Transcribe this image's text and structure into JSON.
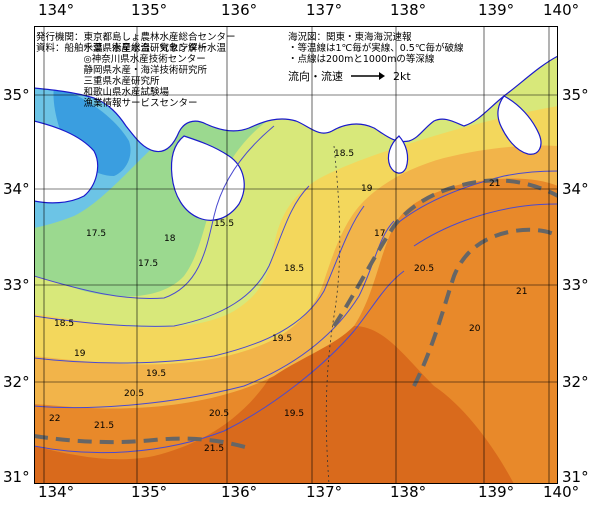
{
  "lon_labels": [
    "134°",
    "135°",
    "136°",
    "137°",
    "138°",
    "139°",
    "140°"
  ],
  "lat_labels": [
    "35°",
    "34°",
    "33°",
    "32°",
    "31°"
  ],
  "credits": {
    "issuer_label": "発行機関：",
    "issuers": [
      "東京都島しょ農林水産総合センター",
      "千葉県水産総合研究センター",
      "◎神奈川県水産技術センター",
      "静岡県水産・海洋技術研究所",
      "三重県水産研究所",
      "和歌山県水産試験場",
      "漁業情報サービスセンター"
    ],
    "source": "資料：船舶水温、衛星水温、気象庁解析水温"
  },
  "map_info": {
    "title": "海況図：関東・東海海況速報",
    "isotherm_note": "・等温線は1℃毎が実線、0.5℃毎が破線",
    "depth_note": "・点線は200mと1000mの等深線",
    "current_label": "流向・流速",
    "current_speed": "2kt"
  },
  "isotherm_labels": [
    "15.5",
    "17",
    "17.5",
    "18",
    "18.5",
    "19",
    "19.5",
    "20",
    "20.5",
    "21",
    "21.5",
    "22"
  ],
  "colors": {
    "land": "#ffffff",
    "t15": "#3a9ee0",
    "t16": "#6cc4e6",
    "t17": "#9bd98f",
    "t18": "#d8e87a",
    "t19": "#f3d75c",
    "t20": "#f2b44a",
    "t21": "#e8892a",
    "t22": "#d96a1c",
    "isotherm": "#4a4ad0",
    "coast": "#1a1acc",
    "kuroshio": "#666666"
  }
}
